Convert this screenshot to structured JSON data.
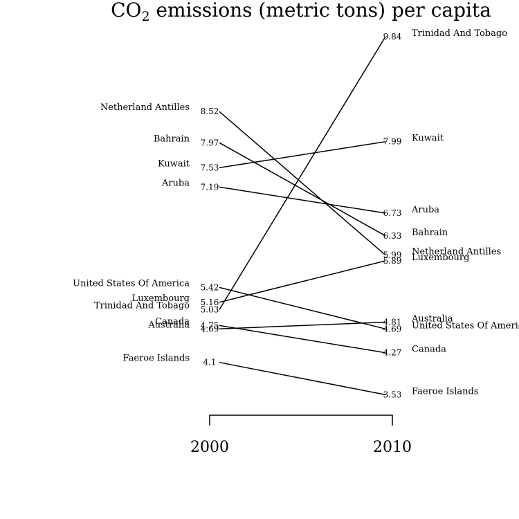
{
  "chart_data": {
    "type": "slope",
    "title_main": "CO",
    "title_sub": "2",
    "title_rest": " emissions (metric tons) per capita",
    "x_labels": [
      "2000",
      "2010"
    ],
    "series": [
      {
        "name": "Trinidad And Tobago",
        "start": 5.03,
        "end": 9.84,
        "start_label": "5.03",
        "end_label": "9.84"
      },
      {
        "name": "Kuwait",
        "start": 7.53,
        "end": 7.99,
        "start_label": "7.53",
        "end_label": "7.99"
      },
      {
        "name": "Aruba",
        "start": 7.19,
        "end": 6.73,
        "start_label": "7.19",
        "end_label": "6.73"
      },
      {
        "name": "Bahrain",
        "start": 7.97,
        "end": 6.33,
        "start_label": "7.97",
        "end_label": "6.33"
      },
      {
        "name": "Netherland Antilles",
        "start": 8.52,
        "end": 5.99,
        "start_label": "8.52",
        "end_label": "5.99"
      },
      {
        "name": "Luxembourg",
        "start": 5.16,
        "end": 5.89,
        "start_label": "5.16",
        "end_label": "5.89"
      },
      {
        "name": "Australia",
        "start": 4.69,
        "end": 4.81,
        "start_label": "4.69",
        "end_label": "4.81"
      },
      {
        "name": "United States Of America",
        "start": 5.42,
        "end": 4.69,
        "start_label": "5.42",
        "end_label": "4.69"
      },
      {
        "name": "Canada",
        "start": 4.75,
        "end": 4.27,
        "start_label": "4.75",
        "end_label": "4.27"
      },
      {
        "name": "Faeroe Islands",
        "start": 4.1,
        "end": 3.53,
        "start_label": "4.1",
        "end_label": "3.53"
      }
    ]
  }
}
